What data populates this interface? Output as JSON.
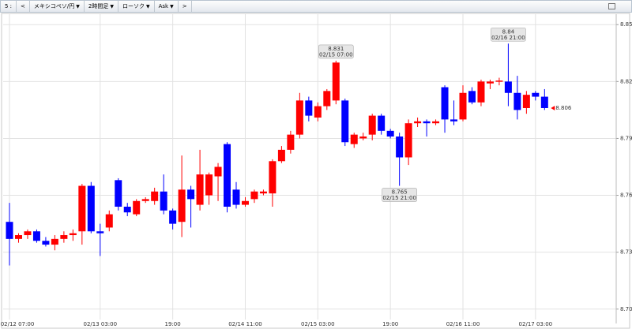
{
  "toolbar": {
    "items": [
      "5 :",
      "<",
      "メキシコペソ/円",
      "2時間足",
      "ローソク",
      "Ask",
      ">"
    ]
  },
  "chart_data": {
    "type": "candlestick",
    "categories": [
      "02/12 07:00",
      null,
      null,
      null,
      null,
      null,
      null,
      null,
      null,
      null,
      "02/13 03:00",
      null,
      null,
      null,
      null,
      null,
      null,
      null,
      "19:00",
      null,
      null,
      null,
      null,
      null,
      null,
      null,
      "02/14 11:00",
      null,
      null,
      null,
      null,
      null,
      null,
      null,
      "02/15 03:00",
      null,
      null,
      null,
      null,
      null,
      null,
      null,
      "19:00",
      null,
      null,
      null,
      null,
      null,
      null,
      null,
      "02/16 11:00",
      null,
      null,
      null,
      null,
      null,
      null,
      null,
      "02/17 03:00",
      null
    ],
    "open": [
      8.746,
      8.737,
      8.739,
      8.741,
      8.736,
      8.734,
      8.737,
      8.739,
      8.741,
      8.765,
      8.741,
      8.743,
      8.768,
      8.754,
      8.75,
      8.757,
      8.757,
      8.762,
      8.752,
      8.746,
      8.763,
      8.755,
      8.76,
      8.77,
      8.787,
      8.763,
      8.755,
      8.758,
      8.761,
      8.761,
      8.778,
      8.784,
      8.792,
      8.81,
      8.801,
      8.807,
      8.81,
      8.81,
      8.787,
      8.79,
      8.792,
      8.802,
      8.794,
      8.791,
      8.78,
      8.798,
      8.799,
      8.798,
      8.817,
      8.8,
      8.8,
      8.815,
      8.809,
      8.819,
      8.82,
      8.82,
      8.814,
      8.806,
      8.814,
      8.812
    ],
    "high": [
      8.756,
      8.74,
      8.742,
      8.742,
      8.738,
      8.739,
      8.741,
      8.742,
      8.766,
      8.767,
      8.745,
      8.752,
      8.769,
      8.756,
      8.758,
      8.759,
      8.764,
      8.771,
      8.753,
      8.781,
      8.765,
      8.784,
      8.772,
      8.777,
      8.788,
      8.767,
      8.759,
      8.763,
      8.763,
      8.779,
      8.786,
      8.794,
      8.814,
      8.812,
      8.809,
      8.816,
      8.831,
      8.811,
      8.793,
      8.793,
      8.803,
      8.803,
      8.795,
      8.793,
      8.8,
      8.801,
      8.8,
      8.8,
      8.818,
      8.81,
      8.818,
      8.817,
      8.821,
      8.821,
      8.822,
      8.84,
      8.823,
      8.815,
      8.815,
      8.816
    ],
    "low": [
      8.723,
      8.735,
      8.737,
      8.735,
      8.733,
      8.731,
      8.735,
      8.736,
      8.734,
      8.74,
      8.728,
      8.741,
      8.752,
      8.749,
      8.749,
      8.756,
      8.755,
      8.75,
      8.742,
      8.738,
      8.743,
      8.752,
      8.755,
      8.757,
      8.751,
      8.753,
      8.754,
      8.756,
      8.76,
      8.754,
      8.777,
      8.782,
      8.79,
      8.799,
      8.799,
      8.805,
      8.808,
      8.786,
      8.785,
      8.789,
      8.789,
      8.792,
      8.79,
      8.765,
      8.776,
      8.796,
      8.791,
      8.797,
      8.793,
      8.797,
      8.799,
      8.808,
      8.807,
      8.816,
      8.818,
      8.807,
      8.8,
      8.803,
      8.81,
      8.805
    ],
    "close": [
      8.737,
      8.739,
      8.741,
      8.736,
      8.734,
      8.737,
      8.739,
      8.74,
      8.765,
      8.741,
      8.74,
      8.75,
      8.754,
      8.751,
      8.757,
      8.758,
      8.762,
      8.752,
      8.745,
      8.763,
      8.758,
      8.771,
      8.771,
      8.775,
      8.754,
      8.755,
      8.757,
      8.762,
      8.762,
      8.778,
      8.784,
      8.792,
      8.81,
      8.802,
      8.807,
      8.815,
      8.83,
      8.788,
      8.792,
      8.791,
      8.802,
      8.794,
      8.791,
      8.78,
      8.798,
      8.799,
      8.798,
      8.799,
      8.8,
      8.799,
      8.814,
      8.809,
      8.82,
      8.82,
      8.8205,
      8.814,
      8.805,
      8.813,
      8.812,
      8.806
    ],
    "up_color": "#ff0000",
    "down_color": "#0000ff",
    "ylim": [
      8.6945,
      8.8555
    ],
    "yticks": [
      {
        "value": 8.85,
        "label": "8.850"
      },
      {
        "value": 8.82,
        "label": "8.820"
      },
      {
        "value": 8.79,
        "label": "8.790"
      },
      {
        "value": 8.76,
        "label": "8.760"
      },
      {
        "value": 8.73,
        "label": "8.730"
      },
      {
        "value": 8.7,
        "label": "8.700"
      }
    ],
    "grid": true,
    "annotations": [
      {
        "price": 8.831,
        "time": "02/15 07:00",
        "side": "above"
      },
      {
        "price": 8.765,
        "time": "02/15 21:00",
        "side": "below"
      },
      {
        "price": 8.84,
        "time": "02/16 21:00",
        "side": "above"
      }
    ],
    "last_price": 8.806,
    "last_price_color": "#ff0000"
  }
}
